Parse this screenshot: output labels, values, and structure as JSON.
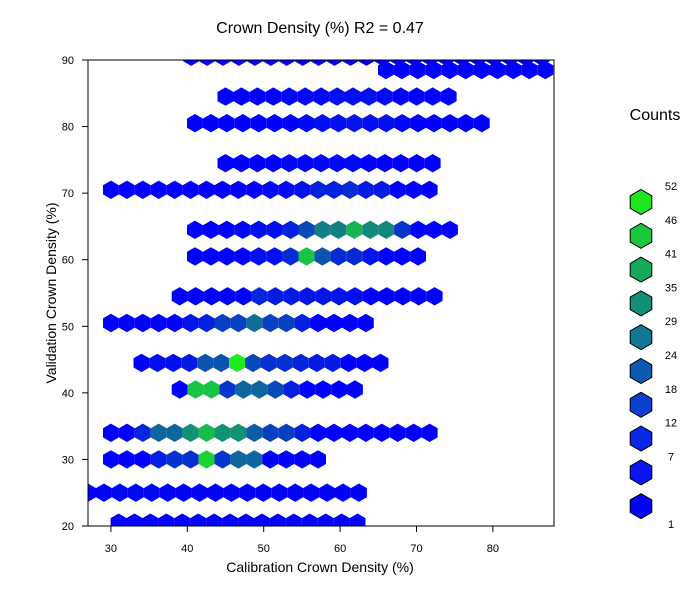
{
  "chart_data": {
    "type": "hexbin",
    "title": "Crown Density (%)  R2  =  0.47",
    "xlabel": "Calibration  Crown Density (%)",
    "ylabel": "Validation  Crown Density (%)",
    "xlim": [
      27,
      88
    ],
    "ylim": [
      20,
      90
    ],
    "xticks": [
      30,
      40,
      50,
      60,
      70,
      80
    ],
    "yticks": [
      20,
      30,
      40,
      50,
      60,
      70,
      80,
      90
    ],
    "grid": false,
    "legend": {
      "title": "Counts",
      "placement": "right",
      "labels": [
        "52",
        "46",
        "41",
        "35",
        "29",
        "24",
        "18",
        "12",
        "7",
        "1"
      ],
      "colors": [
        "#1ee61e",
        "#19c83c",
        "#14aa5a",
        "#119078",
        "#0e7896",
        "#0a5ab4",
        "#0a40d0",
        "#0828e6",
        "#0a14f0",
        "#0000ff"
      ]
    },
    "color_scale": {
      "min": 1,
      "max": 52,
      "low": "#0000ff",
      "high": "#1eeb1e"
    },
    "rows": [
      {
        "y": 90.5,
        "x_start": 40.5,
        "x_end": 87.5,
        "counts": {
          "40.5": 1,
          "66.5": 1,
          "69.5": 1,
          "75.5": 1,
          "78.5": 1,
          "81.5": 1,
          "84.5": 1,
          "87.5": 1
        }
      },
      {
        "y": 88.5,
        "x_start": 66,
        "x_end": 88,
        "counts": {
          "66": 1,
          "69": 1,
          "78": 1,
          "88": 1
        }
      },
      {
        "y": 84.5,
        "x_start": 45,
        "x_end": 75,
        "counts": {
          "54": 2,
          "57": 2,
          "60": 3,
          "63": 3,
          "66": 2
        }
      },
      {
        "y": 80.5,
        "x_start": 41,
        "x_end": 80,
        "counts": {
          "56": 2,
          "59": 3,
          "62": 4,
          "65": 3,
          "68": 2
        }
      },
      {
        "y": 74.5,
        "x_start": 45,
        "x_end": 73,
        "counts": {
          "53": 2,
          "56": 2,
          "59": 2,
          "62": 2
        }
      },
      {
        "y": 70.5,
        "x_start": 30,
        "x_end": 72,
        "counts": {
          "52": 2,
          "55": 3,
          "58": 6,
          "61": 8,
          "64": 5
        }
      },
      {
        "y": 64.5,
        "x_start": 41,
        "x_end": 76,
        "counts": {
          "47": 2,
          "50": 3,
          "53": 6,
          "56": 14,
          "59": 26,
          "62": 38,
          "65": 28,
          "68": 10
        }
      },
      {
        "y": 60.5,
        "x_start": 41,
        "x_end": 71,
        "counts": {
          "50": 3,
          "53": 8,
          "55": 42,
          "58": 16,
          "61": 8,
          "64": 4
        }
      },
      {
        "y": 54.5,
        "x_start": 39,
        "x_end": 73,
        "counts": {
          "50": 7,
          "53": 5,
          "56": 4,
          "59": 4,
          "62": 3
        }
      },
      {
        "y": 50.5,
        "x_start": 30,
        "x_end": 64,
        "counts": {
          "40": 4,
          "43": 6,
          "46": 12,
          "49": 22,
          "52": 12,
          "55": 6
        }
      },
      {
        "y": 44.5,
        "x_start": 34,
        "x_end": 66,
        "counts": {
          "37": 3,
          "40": 5,
          "43": 16,
          "46": 52,
          "49": 14,
          "52": 9,
          "55": 7,
          "58": 5
        }
      },
      {
        "y": 40.5,
        "x_start": 39,
        "x_end": 63,
        "counts": {
          "42": 42,
          "45": 10,
          "48": 20,
          "51": 14,
          "54": 6
        }
      },
      {
        "y": 34,
        "x_start": 30,
        "x_end": 73,
        "counts": {
          "34": 7,
          "37": 20,
          "40": 30,
          "43": 40,
          "46": 30,
          "49": 18,
          "52": 12,
          "55": 6
        }
      },
      {
        "y": 30,
        "x_start": 30,
        "x_end": 58,
        "counts": {
          "36": 6,
          "39": 9,
          "42": 46,
          "45": 10,
          "48": 20
        }
      },
      {
        "y": 25,
        "x_start": 27,
        "x_end": 64,
        "counts": {
          "31": 2,
          "34": 2
        }
      },
      {
        "y": 20.5,
        "x_start": 31,
        "x_end": 64,
        "counts": {}
      }
    ]
  }
}
